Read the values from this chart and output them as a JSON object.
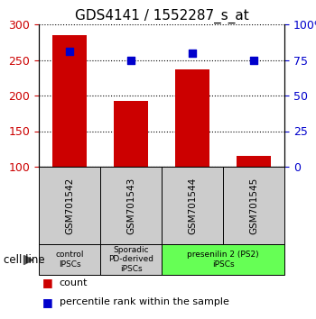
{
  "title": "GDS4141 / 1552287_s_at",
  "samples": [
    "GSM701542",
    "GSM701543",
    "GSM701544",
    "GSM701545"
  ],
  "counts": [
    285,
    193,
    237,
    115
  ],
  "percentiles": [
    81,
    75,
    80,
    75
  ],
  "ylim_left": [
    100,
    300
  ],
  "ylim_right": [
    0,
    100
  ],
  "yticks_left": [
    100,
    150,
    200,
    250,
    300
  ],
  "yticks_right": [
    0,
    25,
    50,
    75,
    100
  ],
  "bar_color": "#cc0000",
  "dot_color": "#0000cc",
  "bg_color": "#ffffff",
  "bar_width": 0.55,
  "groups": [
    {
      "label": "control\nIPSCs",
      "span": [
        0,
        1
      ],
      "color": "#cccccc"
    },
    {
      "label": "Sporadic\nPD-derived\niPSCs",
      "span": [
        1,
        2
      ],
      "color": "#cccccc"
    },
    {
      "label": "presenilin 2 (PS2)\niPSCs",
      "span": [
        2,
        4
      ],
      "color": "#66ff55"
    }
  ],
  "cell_line_label": "cell line",
  "legend_count_label": "count",
  "legend_percentile_label": "percentile rank within the sample",
  "title_fontsize": 11,
  "tick_fontsize": 9,
  "sample_fontsize": 7.5,
  "group_fontsize": 6.5,
  "legend_fontsize": 8
}
